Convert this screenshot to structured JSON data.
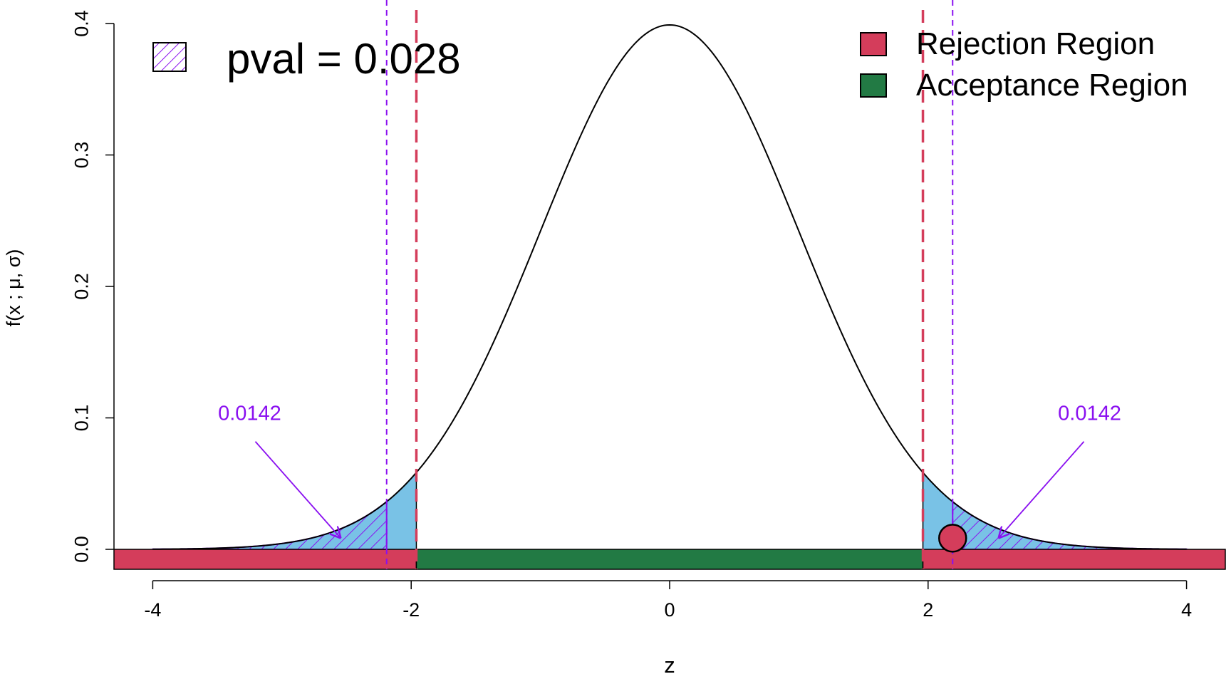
{
  "chart_data": {
    "type": "area",
    "title": "",
    "xlabel": "z",
    "ylabel": "f(x ; μ, σ)",
    "xlim": [
      -4.3,
      4.3
    ],
    "ylim": [
      0,
      0.4
    ],
    "x_ticks": [
      -4,
      -2,
      0,
      2,
      4
    ],
    "x_tick_labels": [
      "-4",
      "-2",
      "0",
      "2",
      "4"
    ],
    "y_ticks": [
      0.0,
      0.1,
      0.2,
      0.3,
      0.4
    ],
    "y_tick_labels": [
      "0.0",
      "0.1",
      "0.2",
      "0.3",
      "0.4"
    ],
    "grid": false,
    "distribution": {
      "name": "standard normal",
      "mean": 0,
      "sd": 1,
      "x_range": [
        -4,
        4
      ]
    },
    "critical_values": [
      -1.96,
      1.96
    ],
    "test_statistic": 2.19,
    "pvalue": {
      "label": "pval = 0.028",
      "tail_areas": [
        {
          "side": "left",
          "from": -4,
          "to": -2.19,
          "label": "0.0142",
          "arrow_tip": {
            "x": -2.55,
            "y": 0.009
          },
          "label_pos": {
            "x": -3.25,
            "y": 0.095
          }
        },
        {
          "side": "right",
          "from": 2.19,
          "to": 4,
          "label": "0.0142",
          "arrow_tip": {
            "x": 2.55,
            "y": 0.009
          },
          "label_pos": {
            "x": 3.25,
            "y": 0.095
          }
        }
      ]
    },
    "regions": [
      {
        "name": "Rejection Region",
        "from": -4.3,
        "to": -1.96,
        "color": "#d43d5b"
      },
      {
        "name": "Acceptance Region",
        "from": -1.96,
        "to": 1.96,
        "color": "#227a44"
      },
      {
        "name": "Rejection Region",
        "from": 1.96,
        "to": 4.3,
        "color": "#d43d5b"
      }
    ],
    "legend": {
      "placement": "top-right",
      "entries": [
        {
          "label": "Rejection Region",
          "color": "#d43d5b"
        },
        {
          "label": "Acceptance Region",
          "color": "#227a44"
        }
      ]
    },
    "pval_legend": {
      "placement": "top-left",
      "label": "pval = 0.028"
    },
    "colors": {
      "rejection": "#d43d5b",
      "acceptance": "#227a44",
      "tail_fill": "#79c2e6",
      "hatch": "#8a10f0",
      "curve": "#000000"
    }
  }
}
